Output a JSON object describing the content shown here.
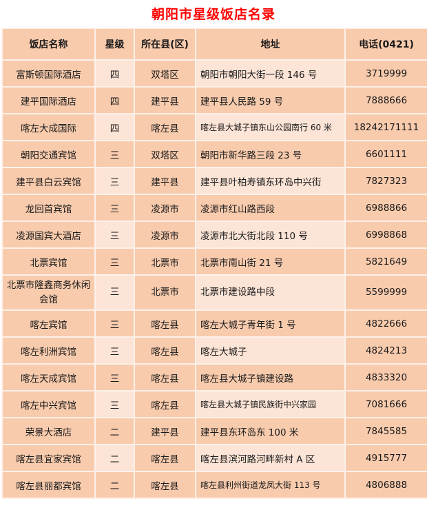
{
  "title": "朝阳市星级饭店名录",
  "headers": [
    "饭店名称",
    "星级",
    "所在县(区)",
    "地址",
    "电话(0421)"
  ],
  "rows": [
    [
      "富斯顿国际酒店",
      "四",
      "双塔区",
      "朝阳市朝阳大街一段 146 号",
      "3719999"
    ],
    [
      "建平国际酒店",
      "四",
      "建平县",
      "建平县人民路 59 号",
      "7888666"
    ],
    [
      "喀左大成国际",
      "四",
      "喀左县",
      "喀左县大城子镇东山公园南行 60 米",
      "18242171111"
    ],
    [
      "朝阳交通宾馆",
      "三",
      "双塔区",
      "朝阳市新华路三段 23 号",
      "6601111"
    ],
    [
      "建平县白云宾馆",
      "三",
      "建平县",
      "建平县叶柏寿镇东环岛中兴街",
      "7827323"
    ],
    [
      "龙回首宾馆",
      "三",
      "凌源市",
      "凌源市红山路西段",
      "6988866"
    ],
    [
      "凌源国宾大酒店",
      "三",
      "凌源市",
      "凌源市北大街北段 110 号",
      "6998868"
    ],
    [
      "北票宾馆",
      "三",
      "北票市",
      "北票市南山街 21 号",
      "5821649"
    ],
    [
      "北票市隆鑫商务休闲会馆",
      "三",
      "北票市",
      "北票市建设路中段",
      "5599999"
    ],
    [
      "喀左宾馆",
      "三",
      "喀左县",
      "喀左大城子青年街 1 号",
      "4822666"
    ],
    [
      "喀左利洲宾馆",
      "三",
      "喀左县",
      "喀左大城子",
      "4824213"
    ],
    [
      "喀左天成宾馆",
      "三",
      "喀左县",
      "喀左县大城子镇建设路",
      "4833320"
    ],
    [
      "喀左中兴宾馆",
      "三",
      "喀左县",
      "喀左县大城子镇民族街中兴家园",
      "7081666"
    ],
    [
      "荣景大酒店",
      "二",
      "建平县",
      "建平县东环岛东 100  米",
      "7845585"
    ],
    [
      "喀左县宜家宾馆",
      "二",
      "喀左县",
      "喀左县滨河路河畔新村 A 区",
      "4915777"
    ],
    [
      "喀左县丽都宾馆",
      "二",
      "喀左县",
      "喀左县利州街道龙凤大街 113 号",
      "4806888"
    ]
  ],
  "colors": {
    "title": "#ff0000",
    "header_bg": "#f8cbad",
    "light_cell": "#fce4d6"
  }
}
